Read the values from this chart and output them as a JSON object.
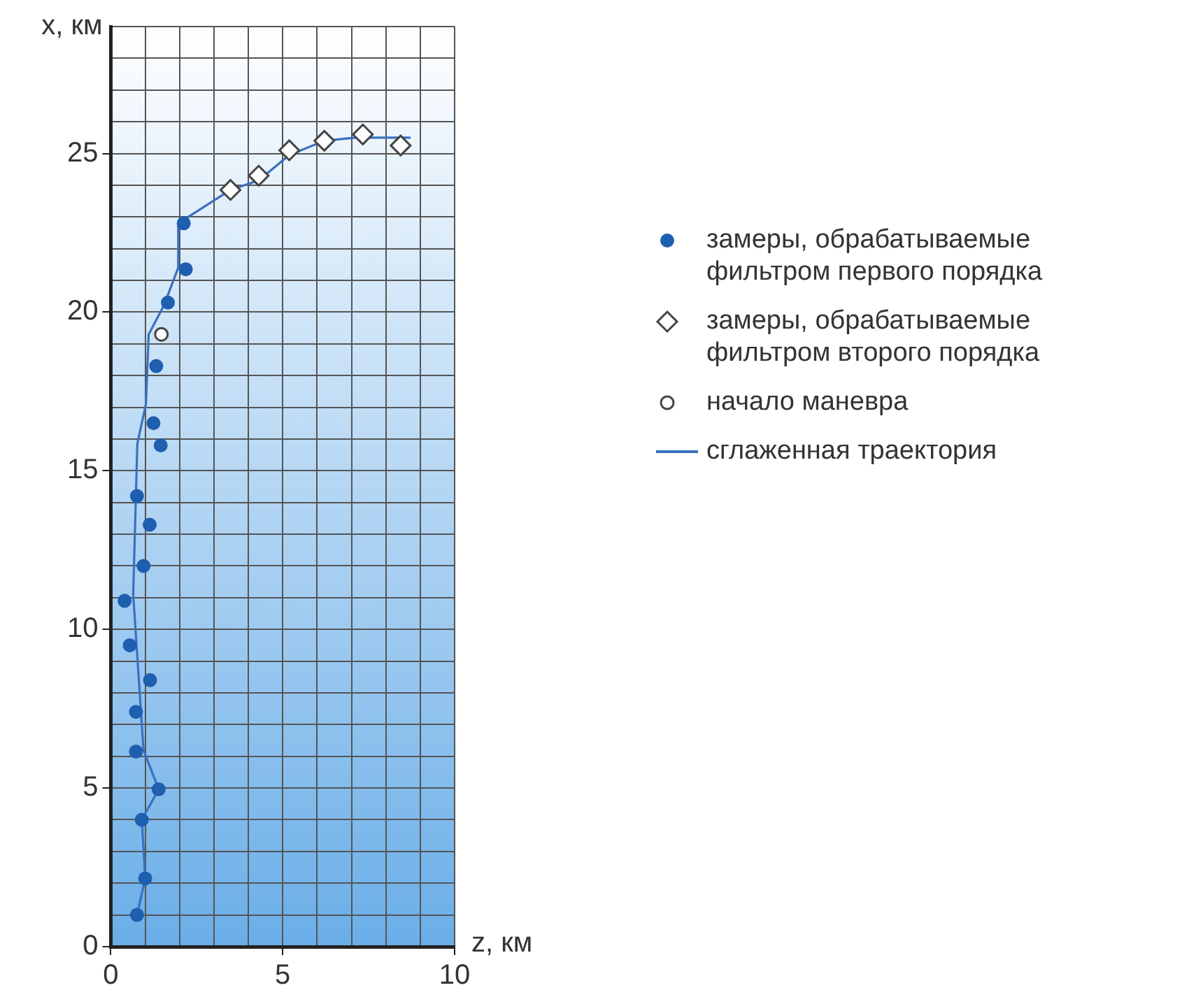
{
  "chart_data": {
    "type": "scatter",
    "xlabel": "z, км",
    "ylabel": "x, км",
    "xlim": [
      0,
      10
    ],
    "ylim": [
      0,
      29
    ],
    "xticks": [
      0,
      {
        "value": 1,
        "label": null
      },
      {
        "value": 2,
        "label": null
      },
      {
        "value": 3,
        "label": null
      },
      {
        "value": 4,
        "label": null
      },
      5,
      {
        "value": 6,
        "label": null
      },
      {
        "value": 7,
        "label": null
      },
      {
        "value": 8,
        "label": null
      },
      {
        "value": 9,
        "label": null
      },
      10
    ],
    "yticks": [
      0,
      {
        "value": 1,
        "label": null
      },
      {
        "value": 2,
        "label": null
      },
      {
        "value": 3,
        "label": null
      },
      {
        "value": 4,
        "label": null
      },
      5,
      {
        "value": 6,
        "label": null
      },
      {
        "value": 7,
        "label": null
      },
      {
        "value": 8,
        "label": null
      },
      {
        "value": 9,
        "label": null
      },
      10,
      {
        "value": 11,
        "label": null
      },
      {
        "value": 12,
        "label": null
      },
      {
        "value": 13,
        "label": null
      },
      {
        "value": 14,
        "label": null
      },
      15,
      {
        "value": 16,
        "label": null
      },
      {
        "value": 17,
        "label": null
      },
      {
        "value": 18,
        "label": null
      },
      {
        "value": 19,
        "label": null
      },
      20,
      {
        "value": 21,
        "label": null
      },
      {
        "value": 22,
        "label": null
      },
      {
        "value": 23,
        "label": null
      },
      {
        "value": 24,
        "label": null
      },
      25,
      {
        "value": 26,
        "label": null
      },
      {
        "value": 27,
        "label": null
      },
      {
        "value": 28,
        "label": null
      },
      {
        "value": 29,
        "label": null
      }
    ],
    "grid": true,
    "legend": "right",
    "series": [
      {
        "name": "замеры, обрабатываемые фильтром первого порядка",
        "type": "scatter",
        "marker": "circle",
        "color": "#1f5fb0",
        "x": [
          0.76,
          1.0,
          0.9,
          1.39,
          0.73,
          0.73,
          1.14,
          0.55,
          0.4,
          0.95,
          1.13,
          0.76,
          1.45,
          1.24,
          1.32,
          1.66,
          2.18,
          2.12
        ],
        "values": [
          1.0,
          2.15,
          4.0,
          4.96,
          6.15,
          7.4,
          8.4,
          9.5,
          10.9,
          12.0,
          13.3,
          14.2,
          15.8,
          16.5,
          18.3,
          20.3,
          21.35,
          22.8
        ]
      },
      {
        "name": "замеры, обрабатываемые фильтром второго порядка",
        "type": "scatter",
        "marker": "diamond",
        "color": "#ffffff",
        "x": [
          3.48,
          4.3,
          5.19,
          6.21,
          7.33,
          8.43
        ],
        "values": [
          23.85,
          24.3,
          25.1,
          25.4,
          25.6,
          25.25
        ]
      },
      {
        "name": "начало маневра",
        "type": "scatter",
        "marker": "circle",
        "color": "#ffffff",
        "x": [
          1.47
        ],
        "values": [
          19.3
        ]
      },
      {
        "name": "сглаженная траектория",
        "type": "line",
        "marker": "none",
        "line_style": "solid",
        "color": "#3a70c0",
        "x": [
          0.76,
          1.0,
          0.9,
          1.39,
          0.95,
          0.65,
          0.77,
          1.02,
          1.1,
          1.54,
          1.96,
          1.96,
          3.48,
          4.3,
          5.19,
          6.21,
          7.1,
          8.72
        ],
        "values": [
          1.0,
          2.15,
          4.0,
          4.96,
          6.2,
          11.1,
          15.85,
          17.1,
          19.3,
          20.2,
          21.4,
          22.8,
          23.85,
          24.15,
          24.95,
          25.4,
          25.5,
          25.5
        ]
      }
    ]
  }
}
